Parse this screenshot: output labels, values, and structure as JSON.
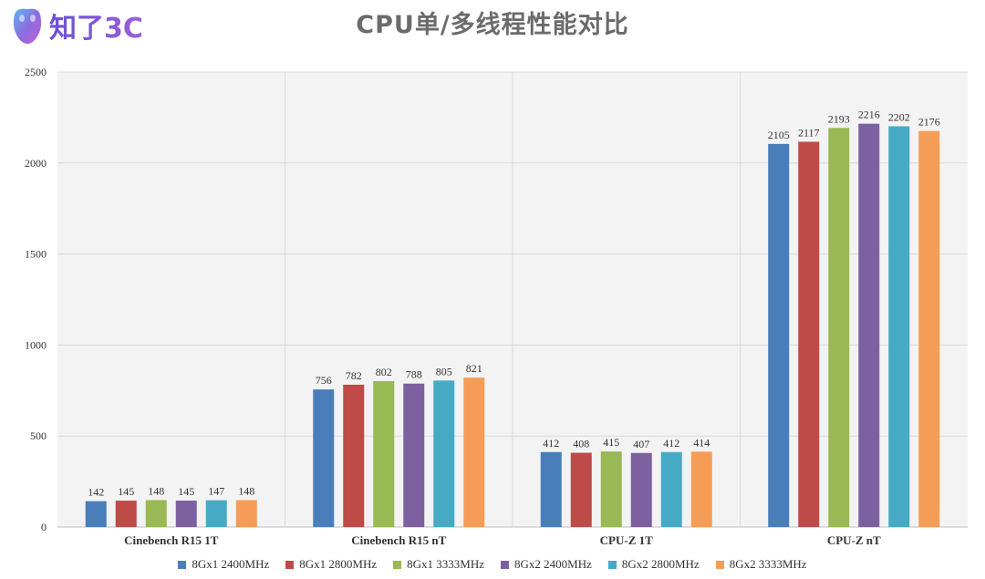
{
  "header": {
    "logo_text": "知了3C",
    "title": "CPU单/多线程性能对比"
  },
  "chart_data": {
    "type": "bar",
    "categories": [
      "Cinebench R15 1T",
      "Cinebench R15 nT",
      "CPU-Z 1T",
      "CPU-Z nT"
    ],
    "series": [
      {
        "name": "8Gx1 2400MHz",
        "color": "#4a7ebb",
        "values": [
          142,
          756,
          412,
          2105
        ]
      },
      {
        "name": "8Gx1 2800MHz",
        "color": "#be4b48",
        "values": [
          145,
          782,
          408,
          2117
        ]
      },
      {
        "name": "8Gx1 3333MHz",
        "color": "#98b954",
        "values": [
          148,
          802,
          415,
          2193
        ]
      },
      {
        "name": "8Gx2 2400MHz",
        "color": "#7d60a0",
        "values": [
          145,
          788,
          407,
          2216
        ]
      },
      {
        "name": "8Gx2 2800MHz",
        "color": "#46aac5",
        "values": [
          147,
          805,
          412,
          2202
        ]
      },
      {
        "name": "8Gx2 3333MHz",
        "color": "#f59d56",
        "values": [
          148,
          821,
          414,
          2176
        ]
      }
    ],
    "y_ticks": [
      "0",
      "500",
      "1000",
      "1500",
      "2000",
      "2500"
    ],
    "ylim": [
      0,
      2500
    ],
    "grid": true,
    "legend_position": "bottom",
    "title": "CPU单/多线程性能对比",
    "xlabel": "",
    "ylabel": ""
  }
}
